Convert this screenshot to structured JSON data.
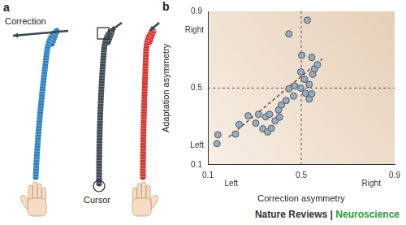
{
  "panel_a": {
    "label": "a",
    "correction_label": "Correction",
    "cursor_label": "Cursor"
  },
  "chart_data": {
    "panel_label": "b",
    "type": "scatter",
    "x_label": "Correction asymmetry",
    "y_label": "Adaptation asymmetry",
    "annotations": {
      "x_left": "Left",
      "x_right": "Right",
      "y_low": "Left",
      "y_high": "Right"
    },
    "xlim": [
      0.1,
      0.9
    ],
    "ylim": [
      0.1,
      0.9
    ],
    "xticks": [
      0.1,
      0.5,
      0.9
    ],
    "yticks": [
      0.1,
      0.5,
      0.9
    ],
    "grid": false,
    "color": "#9aabb9",
    "marker": "circle",
    "reference_lines": {
      "x": 0.5,
      "y": 0.5
    },
    "fit_line": {
      "x": [
        0.19,
        0.59
      ],
      "y": [
        0.245,
        0.652
      ]
    },
    "x": [
      0.139,
      0.143,
      0.218,
      0.234,
      0.273,
      0.305,
      0.317,
      0.336,
      0.348,
      0.356,
      0.364,
      0.372,
      0.388,
      0.403,
      0.407,
      0.415,
      0.435,
      0.447,
      0.467,
      0.471,
      0.498,
      0.518,
      0.534,
      0.545,
      0.534,
      0.514,
      0.498,
      0.549,
      0.557,
      0.569,
      0.545,
      0.502,
      0.447,
      0.526
    ],
    "values": [
      0.21,
      0.256,
      0.26,
      0.31,
      0.355,
      0.317,
      0.363,
      0.287,
      0.35,
      0.271,
      0.363,
      0.29,
      0.329,
      0.386,
      0.348,
      0.412,
      0.435,
      0.496,
      0.458,
      0.511,
      0.5,
      0.473,
      0.443,
      0.47,
      0.519,
      0.546,
      0.584,
      0.572,
      0.6,
      0.622,
      0.66,
      0.671,
      0.782,
      0.854
    ]
  },
  "footer": {
    "journal": "Nature Reviews",
    "separator": "|",
    "section": "Neuroscience"
  }
}
